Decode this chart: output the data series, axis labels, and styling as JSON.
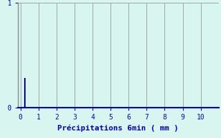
{
  "xlabel": "Précipitations 6min ( mm )",
  "bar_x": [
    0.25
  ],
  "bar_height": [
    0.28
  ],
  "bar_width": 0.06,
  "bar_color": "#0000cc",
  "xlim": [
    -0.15,
    11.0
  ],
  "ylim": [
    0,
    1.0
  ],
  "xticks": [
    0,
    1,
    2,
    3,
    4,
    5,
    6,
    7,
    8,
    9,
    10
  ],
  "yticks": [
    0,
    1
  ],
  "background_color": "#d8f5f0",
  "grid_color": "#999999",
  "bottom_axis_color": "#0000cc",
  "left_axis_color": "#888888",
  "tick_label_color": "#0000cc",
  "xlabel_color": "#0000cc",
  "xlabel_fontsize": 8,
  "tick_fontsize": 7
}
